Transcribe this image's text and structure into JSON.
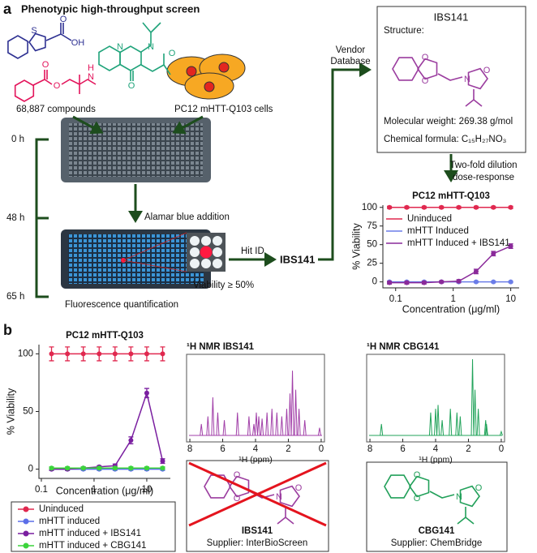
{
  "panel_a": {
    "label": "a",
    "title": "Phenotypic high-throughput screen",
    "molecule_blue_atoms": [
      "S",
      "O",
      "OH"
    ],
    "molecule_green_atoms": [
      "N",
      "N",
      "O",
      "O"
    ],
    "molecule_red_atoms": [
      "O",
      "O",
      "H",
      "N"
    ],
    "compounds": "68,887 compounds",
    "cells": "PC12 mHTT-Q103 cells",
    "times": [
      "0 h",
      "48 h",
      "65 h"
    ],
    "step_alamar": "Alamar blue addition",
    "step_fluorescence": "Fluorescence quantification",
    "viability_threshold": "Viability ≥ 50%",
    "hit_id": "Hit ID",
    "hit": "IBS141",
    "vendor": [
      "Vendor",
      "Database"
    ],
    "dose_response": [
      "Two-fold dilution",
      "dose-response"
    ],
    "structure_box": {
      "name": "IBS141",
      "structure": "Structure:",
      "atoms": [
        "O",
        "O",
        "N",
        "O"
      ],
      "molecular_weight": "Molecular weight: 269.38 g/mol",
      "formula": "Chemical formula: C₁₅H₂₇NO₃"
    }
  },
  "panel_b": {
    "label": "b",
    "structures": [
      {
        "name": "IBS141",
        "supplier": "Supplier: InterBioScreen",
        "atoms": [
          "O",
          "O",
          "N",
          "O"
        ]
      },
      {
        "name": "CBG141",
        "supplier": "Supplier: ChemBridge",
        "atoms": [
          "O",
          "O",
          "N",
          "O"
        ]
      }
    ]
  },
  "chart_data": [
    {
      "type": "line",
      "title": "PC12 mHTT-Q103",
      "xlabel": "Concentration (μg/ml)",
      "ylabel": "% Viability",
      "log_x": true,
      "x": [
        0.078,
        0.156,
        0.3125,
        0.625,
        1.25,
        2.5,
        5,
        10
      ],
      "xlim": [
        0.06,
        14
      ],
      "xticks": [
        0.1,
        1,
        10
      ],
      "ylim": [
        -8,
        103
      ],
      "yticks": [
        0,
        25,
        50,
        75,
        100
      ],
      "legend": "upper left",
      "series": [
        {
          "name": "Uninduced",
          "color": "#e0284f",
          "values": [
            100,
            100,
            100,
            100,
            100,
            100,
            100,
            100
          ],
          "errors": [
            1.5,
            1.5,
            1.5,
            1.5,
            1.5,
            1.5,
            1.5,
            1.5
          ]
        },
        {
          "name": "mHTT Induced",
          "color": "#6b7de8",
          "values": [
            0,
            0,
            0,
            0,
            0,
            0,
            0,
            0
          ],
          "errors": [
            1,
            1,
            1,
            1,
            1,
            1,
            1,
            1
          ]
        },
        {
          "name": "mHTT Induced + IBS141",
          "color": "#8a2a9a",
          "values": [
            -1,
            -1,
            -1,
            0,
            1,
            14,
            38,
            48
          ],
          "errors": [
            2,
            2,
            2,
            1.5,
            2,
            3,
            3,
            3
          ]
        }
      ]
    },
    {
      "type": "line",
      "title": "PC12 mHTT-Q103",
      "xlabel": "Concentration (μg/ml)",
      "ylabel": "% Viability",
      "log_x": true,
      "x": [
        0.156,
        0.3125,
        0.625,
        1.25,
        2.5,
        5,
        10,
        20
      ],
      "xlim": [
        0.09,
        28
      ],
      "xticks": [
        0.1,
        1,
        10
      ],
      "ylim": [
        -8,
        108
      ],
      "yticks": [
        0,
        50,
        100
      ],
      "legend": "below",
      "series": [
        {
          "name": "Uninduced",
          "color": "#e0284f",
          "values": [
            100,
            100,
            100,
            100,
            100,
            100,
            100,
            100
          ],
          "errors": [
            6,
            6,
            6,
            6,
            6,
            6,
            6,
            6
          ]
        },
        {
          "name": "mHTT induced",
          "color": "#5b6ee8",
          "values": [
            0,
            0,
            0,
            0,
            0,
            0,
            0,
            0
          ],
          "errors": [
            1,
            1,
            1,
            1,
            1,
            1,
            1,
            1
          ]
        },
        {
          "name": "mHTT induced + IBS141",
          "color": "#7a1fa0",
          "values": [
            0,
            0,
            1,
            2,
            3,
            25,
            66,
            7
          ],
          "errors": [
            1,
            1,
            1,
            1,
            1.5,
            3,
            4,
            2
          ]
        },
        {
          "name": "mHTT induced + CBG141",
          "color": "#3cd43c",
          "values": [
            1,
            1,
            1,
            1,
            1,
            1,
            1,
            1
          ],
          "errors": [
            1,
            1,
            1,
            1,
            1,
            1,
            1,
            1
          ]
        }
      ]
    },
    {
      "type": "spectrum",
      "title": "¹H NMR IBS141",
      "xlabel": "¹H (ppm)",
      "color": "#a13fa8",
      "xlim": [
        8.2,
        -0.2
      ],
      "xticks": [
        8,
        6,
        4,
        2,
        0
      ],
      "peaks_ppm": [
        7.3,
        6.9,
        6.6,
        6.3,
        5.9,
        5.1,
        4.4,
        4.1,
        3.95,
        3.8,
        3.6,
        3.3,
        3.0,
        2.7,
        2.4,
        2.1,
        1.9,
        1.75,
        1.55,
        1.35,
        1.0,
        0.1
      ],
      "peaks_height": [
        0.15,
        0.25,
        0.5,
        0.3,
        0.2,
        0.3,
        0.25,
        0.15,
        0.3,
        0.25,
        0.22,
        0.3,
        0.35,
        0.3,
        0.25,
        0.35,
        0.55,
        0.85,
        0.6,
        0.35,
        0.2,
        0.1
      ]
    },
    {
      "type": "spectrum",
      "title": "¹H NMR CBG141",
      "xlabel": "¹H (ppm)",
      "color": "#21a35a",
      "xlim": [
        8.2,
        -0.2
      ],
      "xticks": [
        8,
        6,
        4,
        2,
        0
      ],
      "peaks_ppm": [
        7.3,
        4.3,
        4.0,
        3.85,
        3.6,
        3.1,
        2.7,
        2.5,
        1.75,
        1.6,
        1.4,
        0.95,
        0.9,
        0.0
      ],
      "peaks_height": [
        0.15,
        0.3,
        0.35,
        0.4,
        0.2,
        0.35,
        0.3,
        0.25,
        1.0,
        0.6,
        0.35,
        0.2,
        0.15,
        0.05
      ]
    }
  ]
}
